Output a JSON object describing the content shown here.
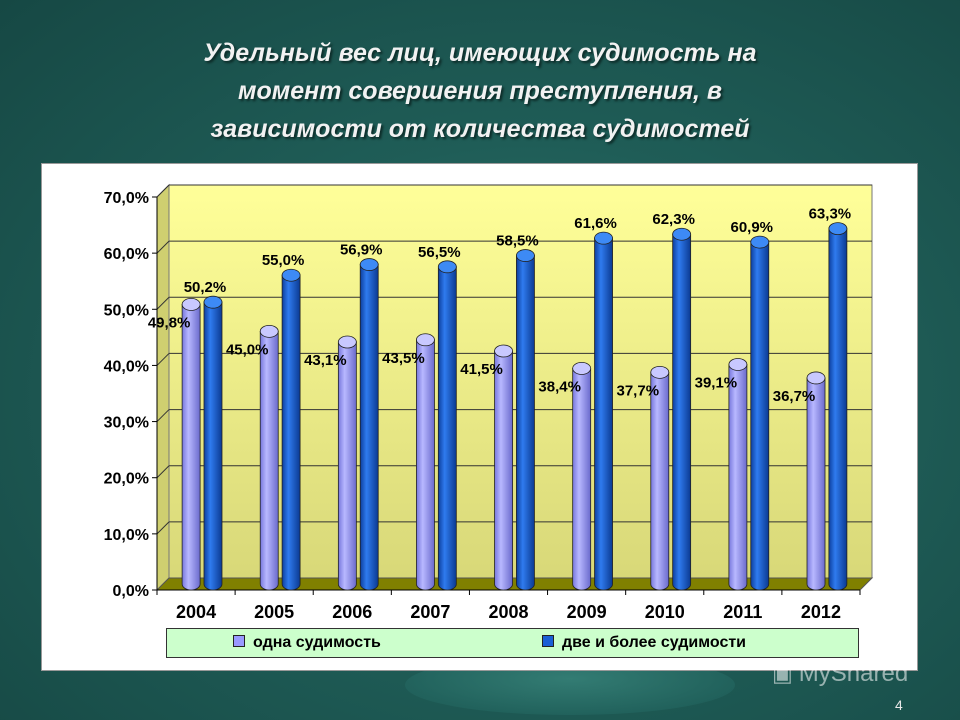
{
  "slide": {
    "title_lines": [
      "Удельный вес лиц, имеющих судимость на",
      "момент совершения преступления, в",
      "зависимости от количества судимостей"
    ],
    "page_number": "4",
    "watermark": "MyShared"
  },
  "chart_data": {
    "type": "bar",
    "style": "3d-cylinder",
    "categories": [
      "2004",
      "2005",
      "2006",
      "2007",
      "2008",
      "2009",
      "2010",
      "2011",
      "2012"
    ],
    "series": [
      {
        "name": "одна судимость",
        "color": "#9999ff",
        "values": [
          49.8,
          45.0,
          43.1,
          43.5,
          41.5,
          38.4,
          37.7,
          39.1,
          36.7
        ],
        "labels": [
          "49,8%",
          "45,0%",
          "43,1%",
          "43,5%",
          "41,5%",
          "38,4%",
          "37,7%",
          "39,1%",
          "36,7%"
        ]
      },
      {
        "name": "две и более судимости",
        "color": "#1a5fd6",
        "values": [
          50.2,
          55.0,
          56.9,
          56.5,
          58.5,
          61.6,
          62.3,
          60.9,
          63.3
        ],
        "labels": [
          "50,2%",
          "55,0%",
          "56,9%",
          "56,5%",
          "58,5%",
          "61,6%",
          "62,3%",
          "60,9%",
          "63,3%"
        ]
      }
    ],
    "y_ticks": [
      "0,0%",
      "10,0%",
      "20,0%",
      "30,0%",
      "40,0%",
      "50,0%",
      "60,0%",
      "70,0%"
    ],
    "ylim": [
      0,
      70
    ],
    "grid": true,
    "legend_position": "bottom",
    "wall_color": "#ffff99",
    "floor_color": "#808000"
  }
}
